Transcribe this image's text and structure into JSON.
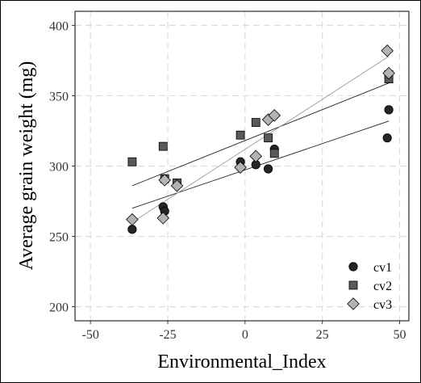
{
  "chart_data": {
    "type": "scatter",
    "xlabel": "Environmental_Index",
    "ylabel": "Average grain weight (mg)",
    "xlim": [
      -55,
      53
    ],
    "ylim": [
      190,
      410
    ],
    "xticks": [
      -50,
      -25,
      0,
      25,
      50
    ],
    "yticks": [
      200,
      250,
      300,
      350,
      400
    ],
    "xtick_labels": [
      "-50",
      "-25",
      "0",
      "25",
      "50"
    ],
    "ytick_labels": [
      "200",
      "250",
      "300",
      "350",
      "400"
    ],
    "grid": true,
    "legend_position": "bottom-right",
    "series": [
      {
        "name": "cv1",
        "marker": "circle",
        "color": "#262626",
        "points": [
          {
            "x": -36.5,
            "y": 255
          },
          {
            "x": -26.5,
            "y": 271
          },
          {
            "x": -26.0,
            "y": 268
          },
          {
            "x": -1.5,
            "y": 303
          },
          {
            "x": 3.5,
            "y": 301
          },
          {
            "x": 7.5,
            "y": 298
          },
          {
            "x": 9.5,
            "y": 312
          },
          {
            "x": 46.5,
            "y": 340
          },
          {
            "x": 46.0,
            "y": 320
          }
        ],
        "fit": {
          "x": [
            -36.5,
            46.5
          ],
          "y": [
            270,
            332
          ]
        }
      },
      {
        "name": "cv2",
        "marker": "square",
        "color": "#595959",
        "points": [
          {
            "x": -36.5,
            "y": 303
          },
          {
            "x": -26.5,
            "y": 314
          },
          {
            "x": -26.0,
            "y": 291
          },
          {
            "x": -22.0,
            "y": 288
          },
          {
            "x": -1.5,
            "y": 322
          },
          {
            "x": 3.5,
            "y": 331
          },
          {
            "x": 7.5,
            "y": 320
          },
          {
            "x": 9.5,
            "y": 309
          },
          {
            "x": 46.5,
            "y": 365
          },
          {
            "x": 46.5,
            "y": 362
          }
        ],
        "fit": {
          "x": [
            -36.5,
            46.5
          ],
          "y": [
            286,
            359
          ]
        }
      },
      {
        "name": "cv3",
        "marker": "diamond",
        "color": "#b3b3b3",
        "points": [
          {
            "x": -36.5,
            "y": 262
          },
          {
            "x": -26.5,
            "y": 263
          },
          {
            "x": -26.0,
            "y": 290
          },
          {
            "x": -22.0,
            "y": 286
          },
          {
            "x": -1.5,
            "y": 299
          },
          {
            "x": 3.5,
            "y": 307
          },
          {
            "x": 7.5,
            "y": 333
          },
          {
            "x": 9.5,
            "y": 336
          },
          {
            "x": 46.0,
            "y": 382
          },
          {
            "x": 46.5,
            "y": 366
          }
        ],
        "fit": {
          "x": [
            -36.5,
            46.5
          ],
          "y": [
            260,
            378
          ]
        }
      }
    ]
  }
}
